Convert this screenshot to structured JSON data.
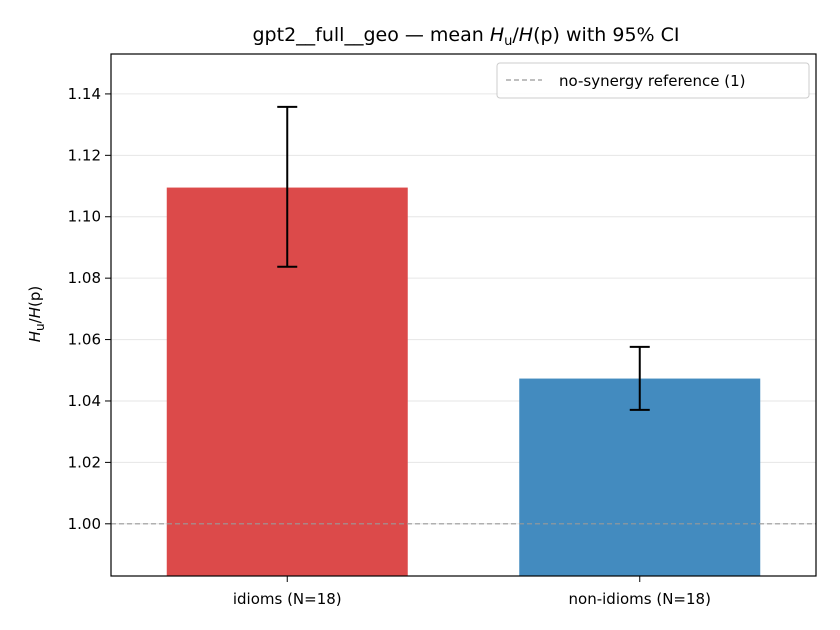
{
  "chart_data": {
    "type": "bar",
    "title": "gpt2__full__geo — mean H_u/H(p) with 95% CI",
    "title_parts": {
      "prefix": "gpt2__full__geo — mean ",
      "h1": "H",
      "sub": "u",
      "slash": "/",
      "h2": "H",
      "arg": "(p)",
      "suffix": " with 95% CI"
    },
    "ylabel": "H_u/H(p)",
    "ylabel_parts": {
      "h1": "H",
      "sub": "u",
      "slash": "/",
      "h2": "H",
      "arg": "(p)"
    },
    "xlabel": "",
    "categories": [
      "idioms (N=18)",
      "non-idioms (N=18)"
    ],
    "values": [
      1.1095,
      1.0473
    ],
    "ci_low": [
      1.0837,
      1.0371
    ],
    "ci_high": [
      1.1358,
      1.0576
    ],
    "colors": [
      "#dc4a4a",
      "#438bbf"
    ],
    "ylim": [
      0.983,
      1.153
    ],
    "yticks": [
      1.0,
      1.02,
      1.04,
      1.06,
      1.08,
      1.1,
      1.12,
      1.14
    ],
    "grid": true,
    "reference_line": {
      "value": 1.0,
      "label": "no-synergy reference (1)",
      "color": "#999999"
    },
    "legend_position": "top-right"
  }
}
